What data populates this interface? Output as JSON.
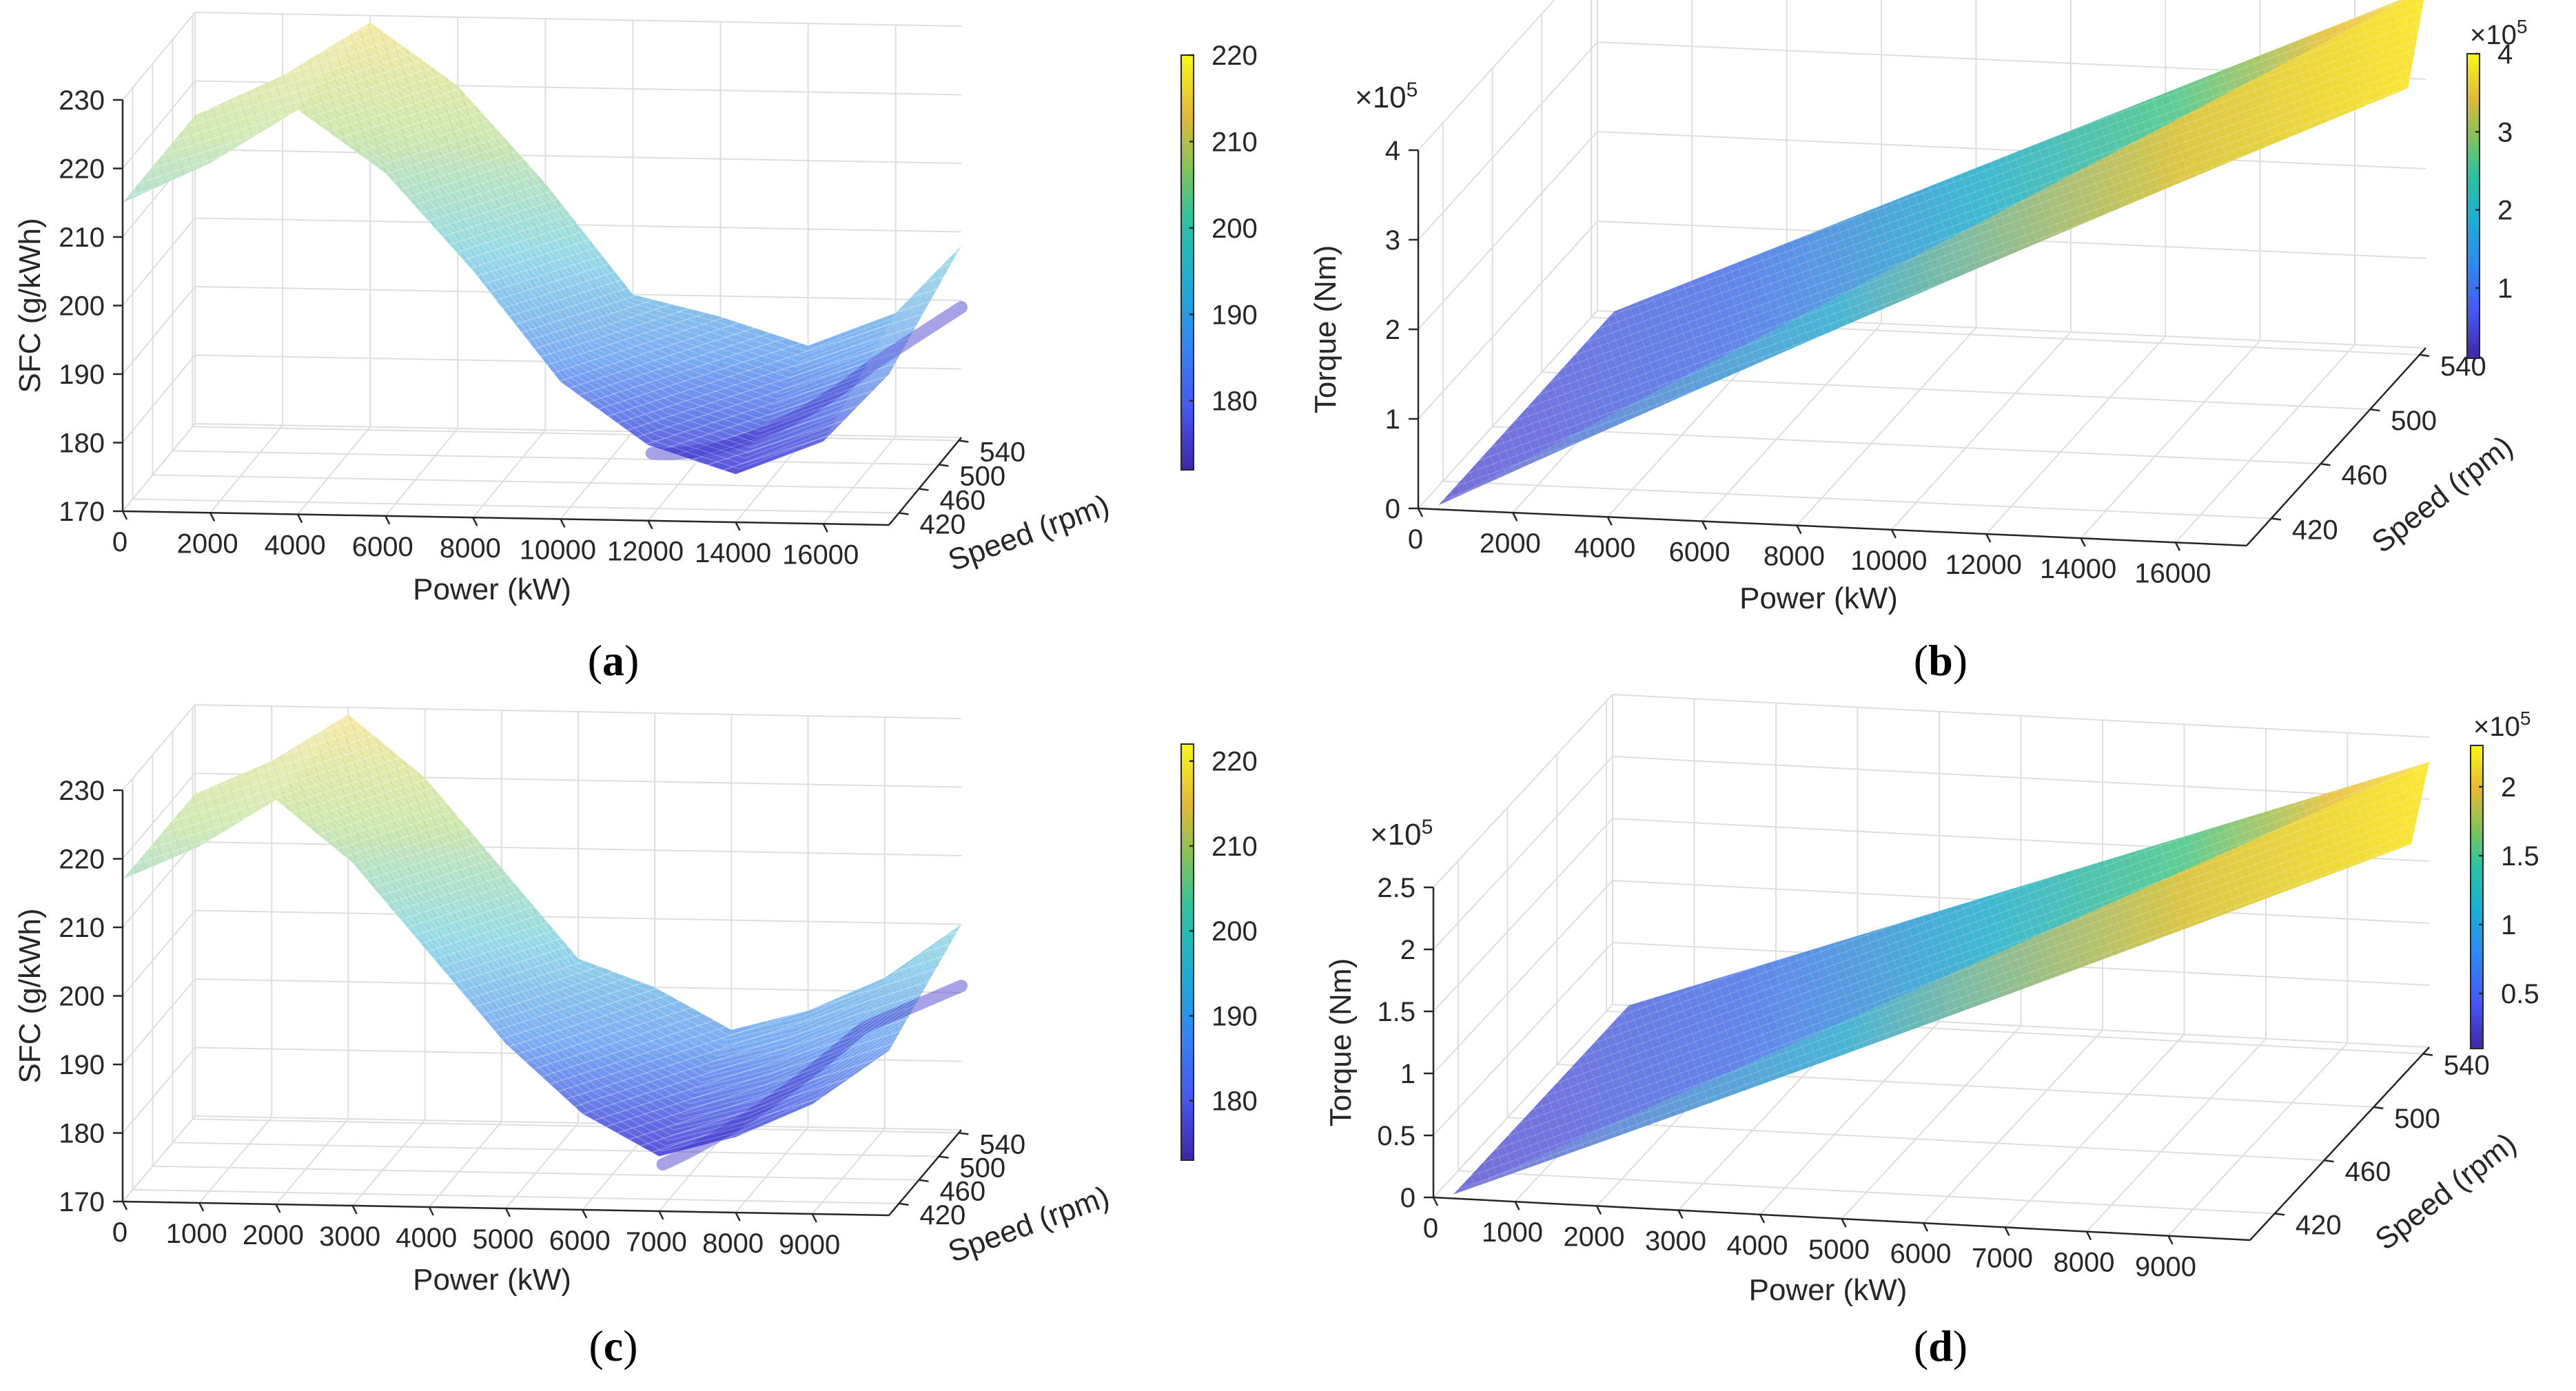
{
  "figure": {
    "panels": [
      "a",
      "b",
      "c",
      "d"
    ]
  },
  "chart_data": [
    {
      "id": "a",
      "type": "surface",
      "panel_label": "a",
      "xlabel": "Power (kW)",
      "ylabel": "Speed (rpm)",
      "zlabel": "SFC (g/kWh)",
      "x_ticks": [
        "0",
        "2000",
        "4000",
        "6000",
        "8000",
        "10000",
        "12000",
        "14000",
        "16000"
      ],
      "y_ticks": [
        "420",
        "460",
        "500",
        "540"
      ],
      "z_ticks": [
        "170",
        "180",
        "190",
        "200",
        "210",
        "220",
        "230"
      ],
      "xlim": [
        0,
        17500
      ],
      "ylim": [
        400,
        545
      ],
      "zlim": [
        170,
        230
      ],
      "colorbar": {
        "ticks": [
          "180",
          "190",
          "200",
          "210",
          "220"
        ],
        "range": [
          172,
          220
        ],
        "exponent": ""
      },
      "surface_profile_power": [
        0,
        2000,
        4000,
        6000,
        8000,
        10000,
        12000,
        14000,
        16000,
        17500
      ],
      "surface_profile_value": [
        215,
        221,
        229,
        220,
        206,
        190,
        181,
        177,
        182,
        192
      ]
    },
    {
      "id": "b",
      "type": "surface",
      "panel_label": "b",
      "xlabel": "Power (kW)",
      "ylabel": "Speed (rpm)",
      "zlabel": "Torque (Nm)",
      "exponent": "×10",
      "exponent_power": "5",
      "x_ticks": [
        "0",
        "2000",
        "4000",
        "6000",
        "8000",
        "10000",
        "12000",
        "14000",
        "16000"
      ],
      "y_ticks": [
        "420",
        "460",
        "500",
        "540"
      ],
      "z_ticks": [
        "0",
        "1",
        "2",
        "3",
        "4"
      ],
      "xlim": [
        0,
        17500
      ],
      "ylim": [
        400,
        545
      ],
      "zlim": [
        0,
        4
      ],
      "colorbar": {
        "ticks": [
          "1",
          "2",
          "3",
          "4"
        ],
        "range": [
          0.1,
          4
        ],
        "exponent": "×10",
        "exponent_power": "5"
      },
      "surface_profile_power": [
        0,
        17500
      ],
      "surface_profile_value": [
        0,
        4
      ]
    },
    {
      "id": "c",
      "type": "surface",
      "panel_label": "c",
      "xlabel": "Power (kW)",
      "ylabel": "Speed (rpm)",
      "zlabel": "SFC (g/kWh)",
      "x_ticks": [
        "0",
        "1000",
        "2000",
        "3000",
        "4000",
        "5000",
        "6000",
        "7000",
        "8000",
        "9000"
      ],
      "y_ticks": [
        "420",
        "460",
        "500",
        "540"
      ],
      "z_ticks": [
        "170",
        "180",
        "190",
        "200",
        "210",
        "220",
        "230"
      ],
      "xlim": [
        0,
        10000
      ],
      "ylim": [
        400,
        545
      ],
      "zlim": [
        170,
        230
      ],
      "colorbar": {
        "ticks": [
          "180",
          "190",
          "200",
          "210",
          "220"
        ],
        "range": [
          173,
          222
        ],
        "exponent": ""
      },
      "surface_profile_power": [
        0,
        1000,
        2000,
        3000,
        4000,
        5000,
        6000,
        7000,
        8000,
        9000,
        10000
      ],
      "surface_profile_value": [
        217,
        222,
        229,
        220,
        207,
        194,
        184,
        178,
        181,
        186,
        194
      ]
    },
    {
      "id": "d",
      "type": "surface",
      "panel_label": "d",
      "xlabel": "Power (kW)",
      "ylabel": "Speed (rpm)",
      "zlabel": "Torque (Nm)",
      "exponent": "×10",
      "exponent_power": "5",
      "x_ticks": [
        "0",
        "1000",
        "2000",
        "3000",
        "4000",
        "5000",
        "6000",
        "7000",
        "8000",
        "9000"
      ],
      "y_ticks": [
        "420",
        "460",
        "500",
        "540"
      ],
      "z_ticks": [
        "0",
        "0.5",
        "1",
        "1.5",
        "2",
        "2.5"
      ],
      "xlim": [
        0,
        10000
      ],
      "ylim": [
        400,
        545
      ],
      "zlim": [
        0,
        2.5
      ],
      "colorbar": {
        "ticks": [
          "0.5",
          "1",
          "1.5",
          "2"
        ],
        "range": [
          0.1,
          2.3
        ],
        "exponent": "×10",
        "exponent_power": "5"
      },
      "surface_profile_power": [
        0,
        10000
      ],
      "surface_profile_value": [
        0,
        2.3
      ]
    }
  ]
}
